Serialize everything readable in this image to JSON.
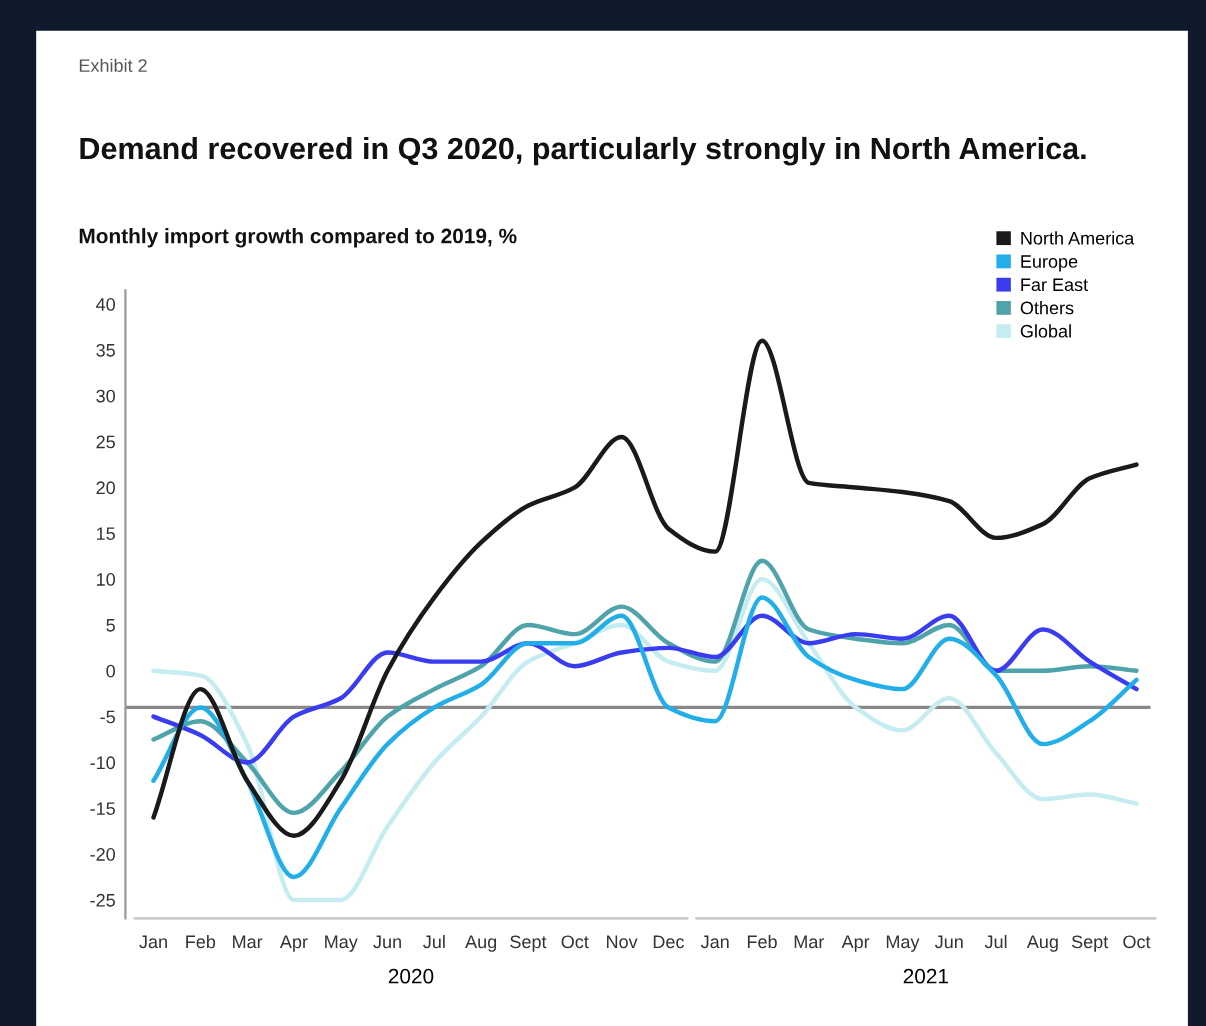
{
  "chart_data": {
    "type": "line",
    "title": "Demand recovered in Q3 2020, particularly strongly in North America.",
    "subtitle": "Monthly import growth compared to 2019, %",
    "annotations": [
      "Exhibit 2",
      "2020",
      "2021"
    ],
    "categories": [
      "Jan",
      "Feb",
      "Mar",
      "Apr",
      "May",
      "Jun",
      "Jul",
      "Aug",
      "Sept",
      "Oct",
      "Nov",
      "Dec",
      "Jan",
      "Feb",
      "Mar",
      "Apr",
      "May",
      "Jun",
      "Jul",
      "Aug",
      "Sept",
      "Oct"
    ],
    "series": [
      {
        "name": "North America",
        "color": "#1a1a1a",
        "values": [
          -16,
          -2,
          -12,
          -18,
          -12,
          0,
          8,
          14,
          18,
          20,
          25.5,
          15.5,
          13,
          36,
          20.5,
          20,
          19.5,
          18.5,
          14.5,
          16,
          21,
          22.5
        ]
      },
      {
        "name": "Europe",
        "color": "#22aee8",
        "values": [
          -12,
          -4,
          -12,
          -22.5,
          -15,
          -8,
          -4,
          -1.5,
          3,
          3,
          6,
          -4,
          -5.5,
          8,
          1.5,
          -1,
          -2,
          3.5,
          -0.5,
          -8,
          -5.5,
          -1
        ]
      },
      {
        "name": "Far East",
        "color": "#3a3cf0",
        "values": [
          -5,
          -7,
          -10,
          -5,
          -3,
          2,
          1,
          1,
          3,
          0.5,
          2,
          2.5,
          1.5,
          6,
          3,
          4,
          3.5,
          6,
          0,
          4.5,
          1,
          -2
        ]
      },
      {
        "name": "Others",
        "color": "#4fa3ab",
        "values": [
          -7.5,
          -5.5,
          -10,
          -15.5,
          -11,
          -5,
          -2,
          0.5,
          5,
          4,
          7,
          3,
          1,
          12,
          4.5,
          3.5,
          3,
          5,
          0,
          0,
          0.5,
          0
        ]
      },
      {
        "name": "Global",
        "color": "#c5ecf0",
        "values": [
          0,
          -0.5,
          -8,
          -25,
          -25,
          -17,
          -10,
          -5,
          1,
          3,
          5,
          1,
          0,
          10,
          3,
          -4,
          -6.5,
          -3,
          -9,
          -14,
          -13.5,
          -14.5
        ]
      }
    ],
    "ylim": [
      -27,
      41.5
    ],
    "yticks": [
      -25,
      -20,
      -15,
      -10,
      -5,
      0,
      5,
      10,
      15,
      20,
      25,
      30,
      35,
      40
    ],
    "ref_lines": [
      {
        "axis": "y",
        "value": -4,
        "color": "#888888"
      }
    ],
    "grid": false,
    "legend": "top right",
    "marker": "none",
    "line_style": "solid"
  }
}
